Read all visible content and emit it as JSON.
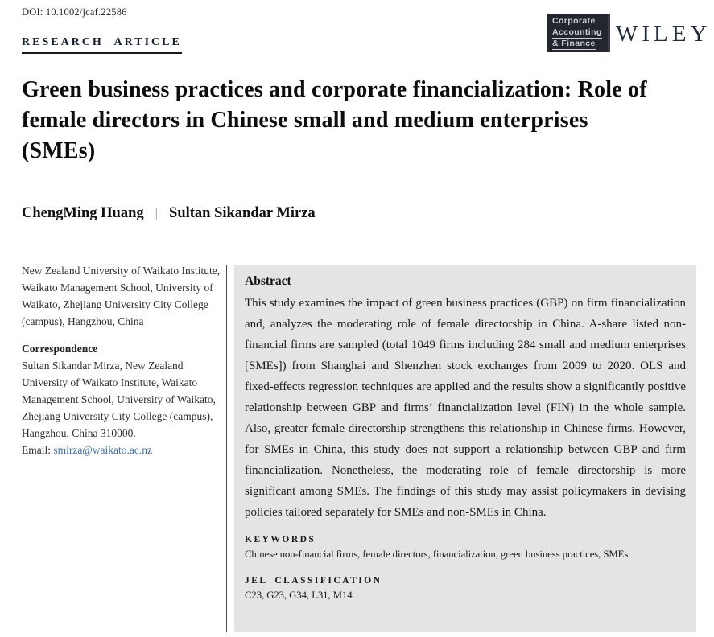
{
  "page": {
    "doi": "DOI: 10.1002/jcaf.22586",
    "article_type": "RESEARCH ARTICLE"
  },
  "branding": {
    "journal_logo_lines": [
      "Corporate",
      "Accounting",
      "& Finance"
    ],
    "publisher": "WILEY"
  },
  "article": {
    "title": "Green business practices and corporate financialization: Role of female directors in Chinese small and medium enterprises (SMEs)",
    "authors": [
      "ChengMing Huang",
      "Sultan Sikandar Mirza"
    ],
    "author_separator": "|"
  },
  "left_column": {
    "affiliation": "New Zealand University of Waikato Institute, Waikato Management School, University of Waikato, Zhejiang University City College (campus), Hangzhou, China",
    "correspondence_heading": "Correspondence",
    "correspondence_text": "Sultan Sikandar Mirza, New Zealand University of Waikato Institute, Waikato Management School, University of Waikato, Zhejiang University City College (campus), Hangzhou, China 310000.",
    "email_label": "Email: ",
    "email": "smirza@waikato.ac.nz"
  },
  "abstract": {
    "heading": "Abstract",
    "text": "This study examines the impact of green business practices (GBP) on firm financialization and, analyzes the moderating role of female directorship in China. A-share listed non-financial firms are sampled (total 1049 firms including 284 small and medium enterprises [SMEs]) from Shanghai and Shenzhen stock exchanges from 2009 to 2020. OLS and fixed-effects regression techniques are applied and the results show a significantly positive relationship between GBP and firms’ financialization level (FIN) in the whole sample. Also, greater female directorship strengthens this relationship in Chinese firms. However, for SMEs in China, this study does not support a relationship between GBP and firm financialization. Nonetheless, the moderating role of female directorship is more significant among SMEs. The findings of this study may assist policymakers in devising policies tailored separately for SMEs and non-SMEs in China.",
    "keywords_heading": "KEYWORDS",
    "keywords": "Chinese non-financial firms, female directors, financialization, green business practices, SMEs",
    "jel_heading": "JEL CLASSIFICATION",
    "jel": "C23, G23, G34, L31, M14"
  },
  "colors": {
    "abstract_bg": "#e4e4e4",
    "link": "#41709f",
    "logo_bg": "#23262f",
    "logo_text": "#cdced4",
    "text_dark": "#1b1b1b"
  }
}
